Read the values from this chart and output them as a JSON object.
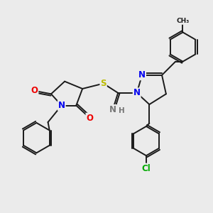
{
  "bg_color": "#ebebeb",
  "bond_color": "#1a1a1a",
  "bond_lw": 1.4,
  "atom_colors": {
    "N": "#0000ee",
    "O": "#ee0000",
    "S": "#bbbb00",
    "Cl": "#00aa00",
    "H": "#777777",
    "C": "#1a1a1a"
  },
  "font_size": 8.5
}
